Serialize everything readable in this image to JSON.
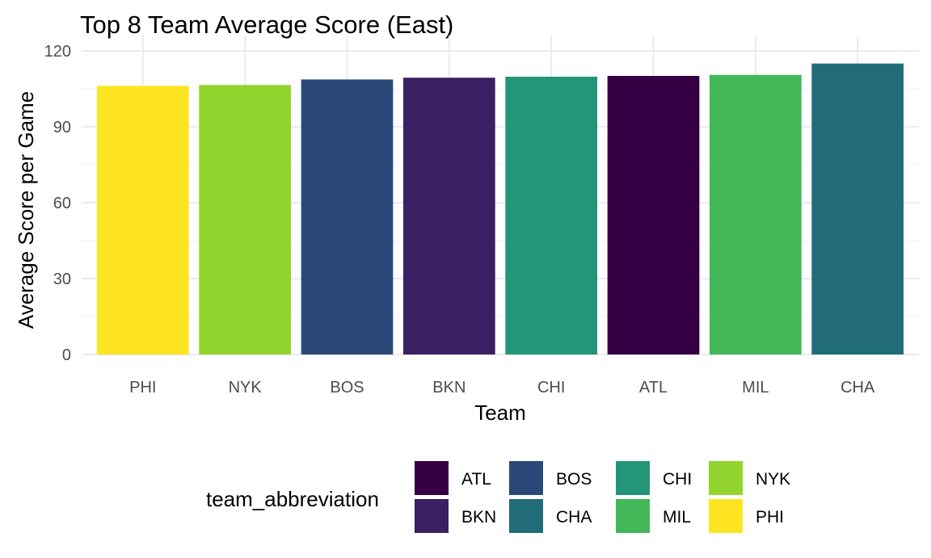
{
  "chart_data": {
    "type": "bar",
    "title": "Top 8 Team Average Score (East)",
    "xlabel": "Team",
    "ylabel": "Average Score per Game",
    "categories": [
      "PHI",
      "NYK",
      "BOS",
      "BKN",
      "CHI",
      "ATL",
      "MIL",
      "CHA"
    ],
    "values": [
      106.2,
      106.5,
      108.7,
      109.4,
      109.8,
      110.1,
      110.5,
      115.0
    ],
    "ylim": [
      0,
      120
    ],
    "yticks": [
      0,
      30,
      60,
      90,
      120
    ],
    "grid": true,
    "legend": {
      "title": "team_abbreviation",
      "placement": "bottom",
      "entries": [
        {
          "label": "ATL",
          "color": "#340043"
        },
        {
          "label": "BKN",
          "color": "#3a2065"
        },
        {
          "label": "BOS",
          "color": "#2a4978"
        },
        {
          "label": "CHA",
          "color": "#226c7a"
        },
        {
          "label": "CHI",
          "color": "#229677"
        },
        {
          "label": "MIL",
          "color": "#42b858"
        },
        {
          "label": "NYK",
          "color": "#92d52e"
        },
        {
          "label": "PHI",
          "color": "#fde621"
        }
      ]
    }
  }
}
